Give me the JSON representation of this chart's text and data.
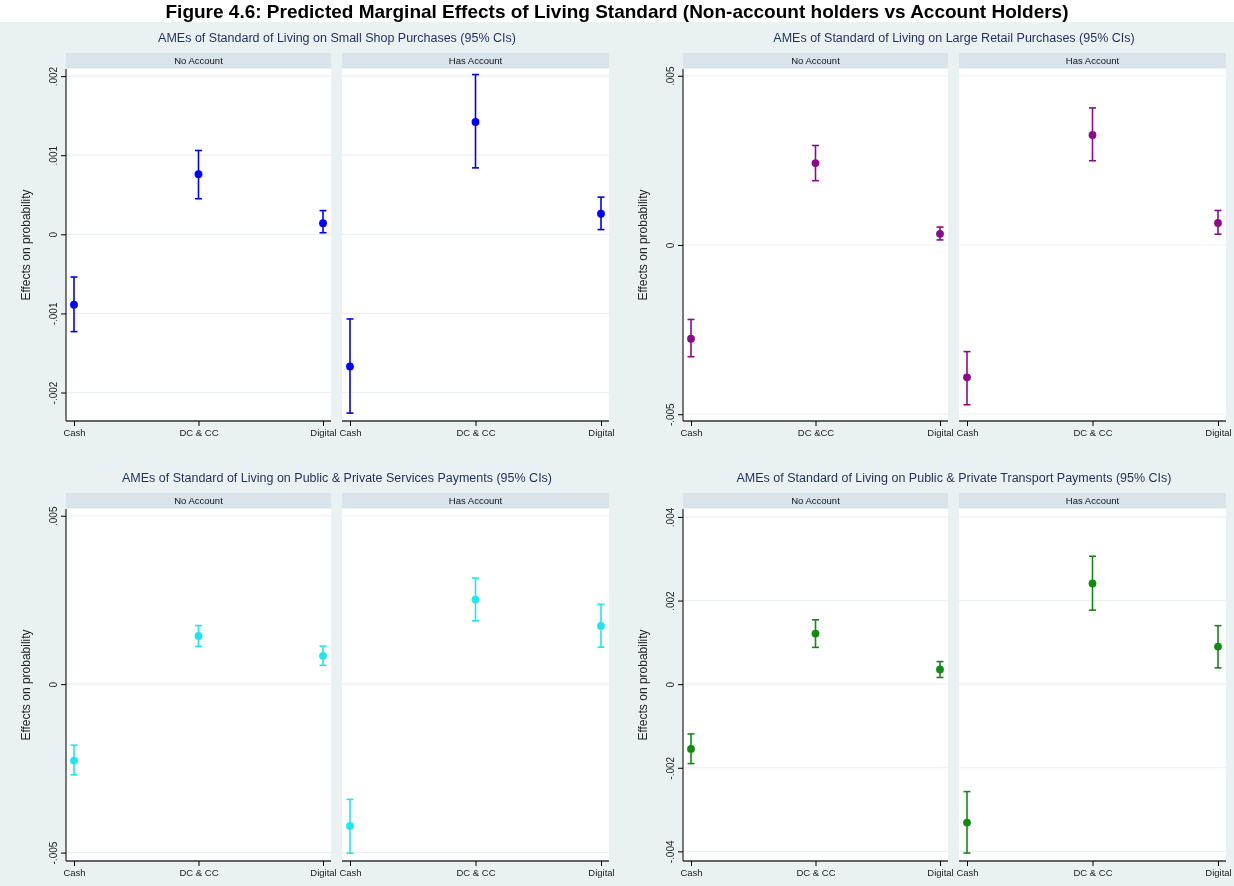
{
  "chart_data": [
    {
      "type": "scatter",
      "title": "AMEs of Standard of Living on Small Shop Purchases (95% CIs)",
      "subtitle": "No Account",
      "ylabel": "Effects on probability",
      "annotations": [
        "Figure 4.6:  Predicted Marginal Effects of Living Standard (Non-account holders vs Account Holders)"
      ],
      "categories": [
        "Cash",
        "DC & CC",
        "Digital"
      ],
      "series": [
        {
          "color": "#0000ff",
          "values": [
            -0.00089,
            0.00076,
            0.00014
          ],
          "errors": [
            [
              -0.00123,
              -0.00054
            ],
            [
              0.00045,
              0.00106
            ],
            [
              2e-05,
              0.0003
            ]
          ]
        }
      ],
      "ylim": [
        -0.00236,
        0.00209
      ],
      "yticks": [
        {
          "value": -0.002,
          "label": "-.002"
        },
        {
          "value": -0.001,
          "label": "-.001"
        },
        {
          "value": 0,
          "label": "0"
        },
        {
          "value": 0.001,
          "label": ".001"
        },
        {
          "value": 0.002,
          "label": ".002"
        }
      ],
      "grid": "y",
      "marker": "circle"
    },
    {
      "type": "scatter",
      "subtitle": "Has Account",
      "categories": [
        "Cash",
        "DC & CC",
        "Digital"
      ],
      "series": [
        {
          "color": "#0000ff",
          "values": [
            -0.00167,
            0.00142,
            0.00026
          ],
          "errors": [
            [
              -0.00226,
              -0.00107
            ],
            [
              0.00084,
              0.00202
            ],
            [
              6e-05,
              0.00047
            ]
          ]
        }
      ],
      "ylim": [
        -0.00236,
        0.00209
      ],
      "yticks": [
        {
          "value": -0.002,
          "label": null
        },
        {
          "value": -0.001,
          "label": null
        },
        {
          "value": 0,
          "label": null
        },
        {
          "value": 0.001,
          "label": null
        },
        {
          "value": 0.002,
          "label": null
        }
      ],
      "grid": "y",
      "marker": "circle",
      "tick_labels": "x"
    },
    {
      "type": "scatter",
      "title": "AMEs of Standard of Living on Large Retail Purchases (95% CIs)",
      "subtitle": "No Account",
      "ylabel": "Effects on probability",
      "categories": [
        "Cash",
        "DC &CC",
        "Digital"
      ],
      "series": [
        {
          "color": "#8b0a8b",
          "values": [
            -0.00277,
            0.00242,
            0.00033
          ],
          "errors": [
            [
              -0.0033,
              -0.0022
            ],
            [
              0.0019,
              0.00294
            ],
            [
              0.00015,
              0.00053
            ]
          ]
        }
      ],
      "ylim": [
        -0.0052,
        0.0052
      ],
      "yticks": [
        {
          "value": -0.005,
          "label": "-.005"
        },
        {
          "value": 0,
          "label": "0"
        },
        {
          "value": 0.005,
          "label": ".005"
        }
      ],
      "grid": "y",
      "marker": "circle"
    },
    {
      "type": "scatter",
      "subtitle": "Has Account",
      "categories": [
        "Cash",
        "DC & CC",
        "Digital"
      ],
      "series": [
        {
          "color": "#8b0a8b",
          "values": [
            -0.00391,
            0.00325,
            0.00065
          ],
          "errors": [
            [
              -0.00472,
              -0.00315
            ],
            [
              0.00249,
              0.00405
            ],
            [
              0.00032,
              0.00102
            ]
          ]
        }
      ],
      "ylim": [
        -0.0052,
        0.0052
      ],
      "yticks": [
        {
          "value": -0.005,
          "label": null
        },
        {
          "value": 0,
          "label": null
        },
        {
          "value": 0.005,
          "label": null
        }
      ],
      "grid": "y",
      "marker": "circle",
      "tick_labels": "x"
    },
    {
      "type": "scatter",
      "title": "AMEs of Standard of Living on Public & Private Services Payments (95% CIs)",
      "subtitle": "No Account",
      "ylabel": "Effects on probability",
      "categories": [
        "Cash",
        "DC & CC",
        "Digital"
      ],
      "series": [
        {
          "color": "#1ee6f0",
          "values": [
            -0.00227,
            0.00143,
            0.00084
          ],
          "errors": [
            [
              -0.00269,
              -0.00181
            ],
            [
              0.00112,
              0.00174
            ],
            [
              0.00056,
              0.00113
            ]
          ]
        }
      ],
      "ylim": [
        -0.00525,
        0.0052
      ],
      "yticks": [
        {
          "value": -0.005,
          "label": "-.005"
        },
        {
          "value": 0,
          "label": "0"
        },
        {
          "value": 0.005,
          "label": ".005"
        }
      ],
      "grid": "y",
      "marker": "circle"
    },
    {
      "type": "scatter",
      "subtitle": "Has Account",
      "categories": [
        "Cash",
        "DC & CC",
        "Digital"
      ],
      "series": [
        {
          "color": "#1ee6f0",
          "values": [
            -0.00421,
            0.00251,
            0.00173
          ],
          "errors": [
            [
              -0.00502,
              -0.00342
            ],
            [
              0.00188,
              0.00315
            ],
            [
              0.0011,
              0.00237
            ]
          ]
        }
      ],
      "ylim": [
        -0.00525,
        0.0052
      ],
      "yticks": [
        {
          "value": -0.005,
          "label": null
        },
        {
          "value": 0,
          "label": null
        },
        {
          "value": 0.005,
          "label": null
        }
      ],
      "grid": "y",
      "marker": "circle",
      "tick_labels": "x"
    },
    {
      "type": "scatter",
      "title": "AMEs of Standard of Living on Public & Private Transport Payments (95% CIs)",
      "subtitle": "No Account",
      "ylabel": "Effects on probability",
      "categories": [
        "Cash",
        "DC & CC",
        "Digital"
      ],
      "series": [
        {
          "color": "#138a13",
          "values": [
            -0.00155,
            0.00121,
            0.00035
          ],
          "errors": [
            [
              -0.0019,
              -0.00119
            ],
            [
              0.00088,
              0.00154
            ],
            [
              0.00016,
              0.00054
            ]
          ]
        }
      ],
      "ylim": [
        -0.00423,
        0.00419
      ],
      "yticks": [
        {
          "value": -0.004,
          "label": "-.004"
        },
        {
          "value": -0.002,
          "label": "-.002"
        },
        {
          "value": 0,
          "label": "0"
        },
        {
          "value": 0.002,
          "label": ".002"
        },
        {
          "value": 0.004,
          "label": ".004"
        }
      ],
      "grid": "y",
      "marker": "circle"
    },
    {
      "type": "scatter",
      "subtitle": "Has Account",
      "categories": [
        "Cash",
        "DC & CC",
        "Digital"
      ],
      "series": [
        {
          "color": "#138a13",
          "values": [
            -0.00331,
            0.00241,
            0.0009
          ],
          "errors": [
            [
              -0.00404,
              -0.00257
            ],
            [
              0.00177,
              0.00306
            ],
            [
              0.00039,
              0.0014
            ]
          ]
        }
      ],
      "ylim": [
        -0.00423,
        0.00419
      ],
      "yticks": [
        {
          "value": -0.004,
          "label": null
        },
        {
          "value": -0.002,
          "label": null
        },
        {
          "value": 0,
          "label": null
        },
        {
          "value": 0.002,
          "label": null
        },
        {
          "value": 0.004,
          "label": null
        }
      ],
      "grid": "y",
      "marker": "circle",
      "tick_labels": "x"
    }
  ]
}
